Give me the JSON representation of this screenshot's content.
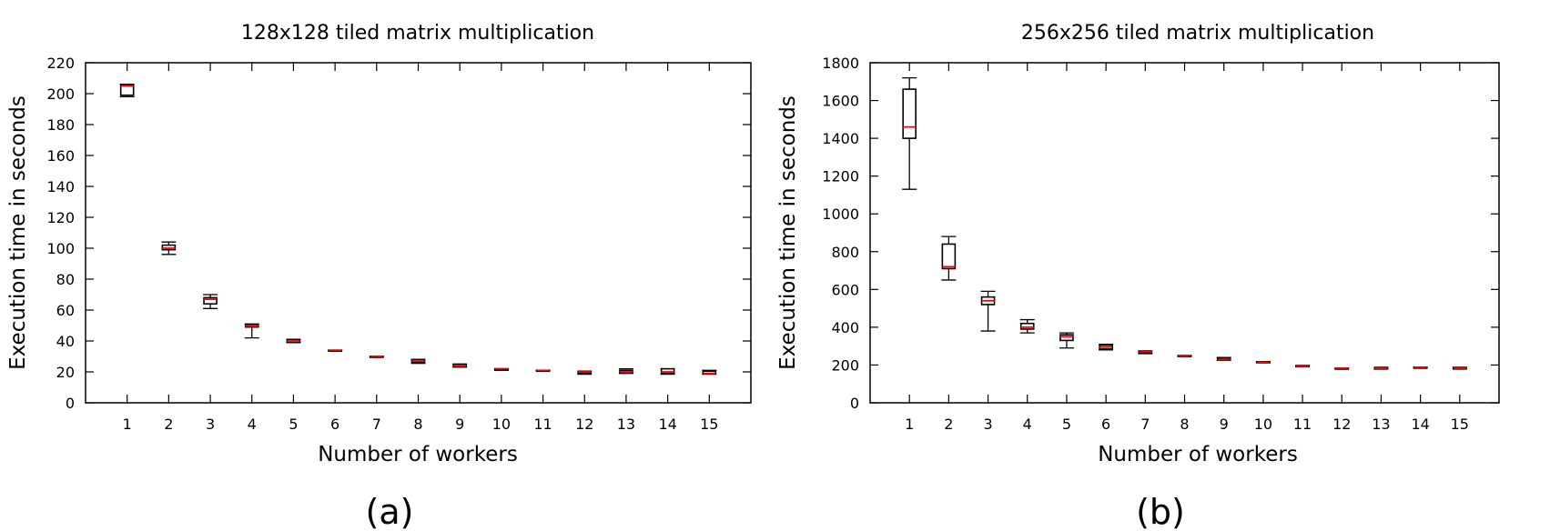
{
  "chart_data": [
    {
      "type": "box",
      "title": "128x128 tiled matrix multiplication",
      "xlabel": "Number of workers",
      "ylabel": "Execution time in seconds",
      "caption": "(a)",
      "ylim": [
        0,
        220
      ],
      "yticks": [
        0,
        20,
        40,
        60,
        80,
        100,
        120,
        140,
        160,
        180,
        200,
        220
      ],
      "categories": [
        "1",
        "2",
        "3",
        "4",
        "5",
        "6",
        "7",
        "8",
        "9",
        "10",
        "11",
        "12",
        "13",
        "14",
        "15"
      ],
      "boxes": [
        {
          "min": 198,
          "q1": 199,
          "median": 205,
          "q3": 206,
          "max": 206
        },
        {
          "min": 96,
          "q1": 99,
          "median": 100,
          "q3": 102,
          "max": 104
        },
        {
          "min": 61,
          "q1": 64,
          "median": 67,
          "q3": 68,
          "max": 70
        },
        {
          "min": 42,
          "q1": 49,
          "median": 50,
          "q3": 50.5,
          "max": 51
        },
        {
          "min": 39,
          "q1": 39,
          "median": 40,
          "q3": 41,
          "max": 41
        },
        {
          "min": 34,
          "q1": 34,
          "median": 34,
          "q3": 34,
          "max": 34
        },
        {
          "min": 30,
          "q1": 30,
          "median": 30,
          "q3": 30,
          "max": 30
        },
        {
          "min": 25.5,
          "q1": 26,
          "median": 27,
          "q3": 28,
          "max": 28
        },
        {
          "min": 23,
          "q1": 23.5,
          "median": 24,
          "q3": 25,
          "max": 25
        },
        {
          "min": 21,
          "q1": 21.5,
          "median": 22,
          "q3": 22,
          "max": 22
        },
        {
          "min": 21,
          "q1": 21,
          "median": 21,
          "q3": 21,
          "max": 21
        },
        {
          "min": 18.5,
          "q1": 19,
          "median": 20,
          "q3": 20,
          "max": 20.5
        },
        {
          "min": 19,
          "q1": 19.5,
          "median": 20,
          "q3": 21,
          "max": 22
        },
        {
          "min": 18.5,
          "q1": 19,
          "median": 20,
          "q3": 22,
          "max": 22
        },
        {
          "min": 18.5,
          "q1": 19,
          "median": 19,
          "q3": 20.5,
          "max": 21
        }
      ]
    },
    {
      "type": "box",
      "title": "256x256 tiled matrix multiplication",
      "xlabel": "Number of workers",
      "ylabel": "Execution time in seconds",
      "caption": "(b)",
      "ylim": [
        0,
        1800
      ],
      "yticks": [
        0,
        200,
        400,
        600,
        800,
        1000,
        1200,
        1400,
        1600,
        1800
      ],
      "categories": [
        "1",
        "2",
        "3",
        "4",
        "5",
        "6",
        "7",
        "8",
        "9",
        "10",
        "11",
        "12",
        "13",
        "14",
        "15"
      ],
      "boxes": [
        {
          "min": 1130,
          "q1": 1400,
          "median": 1460,
          "q3": 1660,
          "max": 1720
        },
        {
          "min": 650,
          "q1": 710,
          "median": 720,
          "q3": 840,
          "max": 880
        },
        {
          "min": 380,
          "q1": 520,
          "median": 540,
          "q3": 560,
          "max": 590
        },
        {
          "min": 370,
          "q1": 390,
          "median": 400,
          "q3": 420,
          "max": 440
        },
        {
          "min": 290,
          "q1": 330,
          "median": 350,
          "q3": 360,
          "max": 370
        },
        {
          "min": 280,
          "q1": 285,
          "median": 295,
          "q3": 305,
          "max": 310
        },
        {
          "min": 260,
          "q1": 265,
          "median": 270,
          "q3": 272,
          "max": 275
        },
        {
          "min": 245,
          "q1": 247,
          "median": 248,
          "q3": 250,
          "max": 250
        },
        {
          "min": 225,
          "q1": 228,
          "median": 230,
          "q3": 235,
          "max": 240
        },
        {
          "min": 212,
          "q1": 214,
          "median": 215,
          "q3": 217,
          "max": 218
        },
        {
          "min": 190,
          "q1": 192,
          "median": 195,
          "q3": 197,
          "max": 198
        },
        {
          "min": 183,
          "q1": 183,
          "median": 183,
          "q3": 183,
          "max": 183
        },
        {
          "min": 178,
          "q1": 180,
          "median": 183,
          "q3": 186,
          "max": 188
        },
        {
          "min": 185,
          "q1": 186,
          "median": 187,
          "q3": 188,
          "max": 188
        },
        {
          "min": 178,
          "q1": 180,
          "median": 183,
          "q3": 186,
          "max": 188
        }
      ]
    }
  ],
  "colors": {
    "median": "#ff0000",
    "box": "#000000",
    "axis": "#000000"
  }
}
